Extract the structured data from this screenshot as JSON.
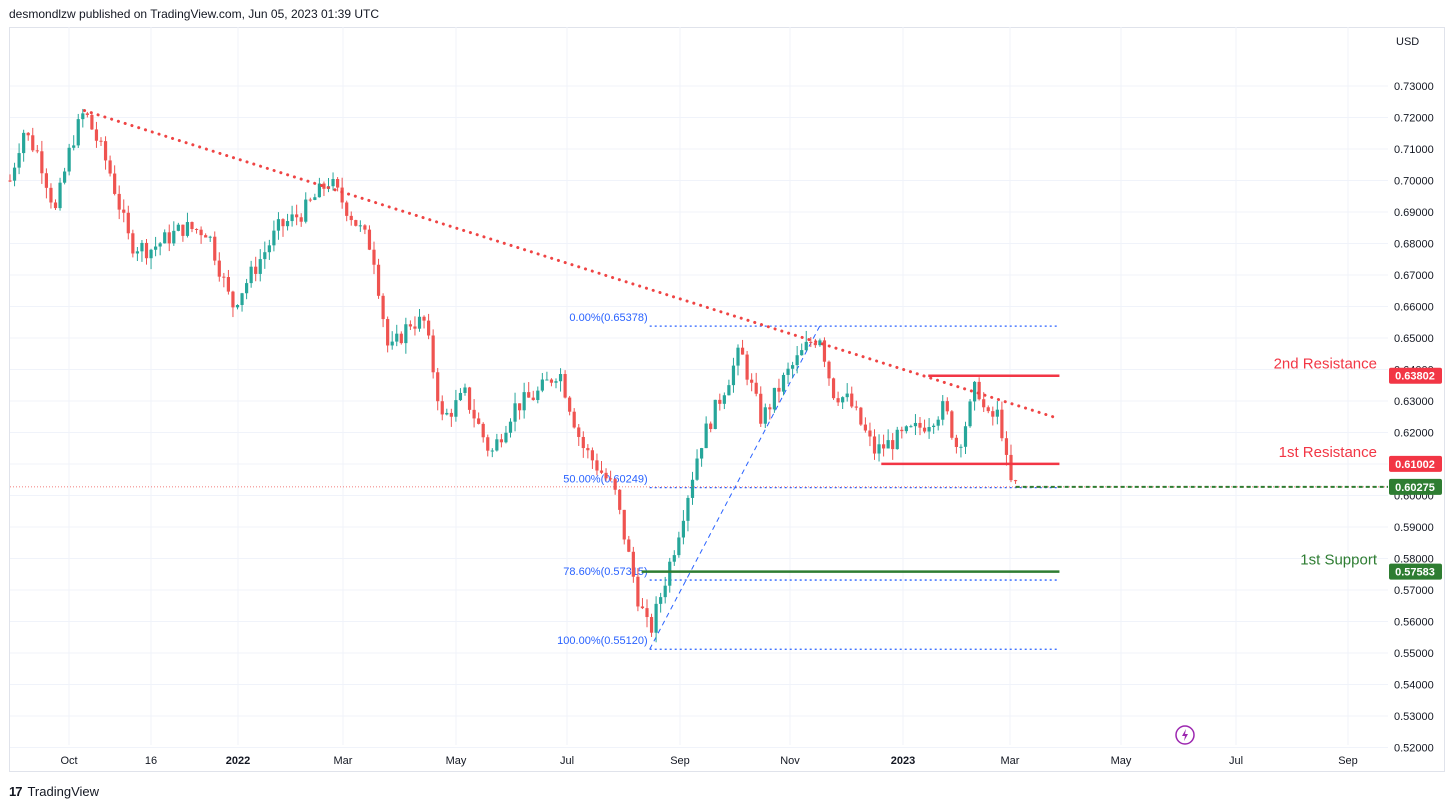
{
  "header": {
    "published": "desmondlzw published on TradingView.com, Jun 05, 2023 01:39 UTC"
  },
  "footer": {
    "brand": "TradingView",
    "logo_glyph": "17"
  },
  "colors": {
    "up": "#26a69a",
    "down": "#ef5350",
    "trend": "#ef4444",
    "fib": "#2962ff",
    "resistance": "#f23645",
    "support": "#2e7d32",
    "grid": "#f0f3fa"
  },
  "chart_data": {
    "type": "candlestick",
    "currency": "USD",
    "ylim": [
      0.515,
      0.737
    ],
    "y_ticks": [
      "0.73000",
      "0.72000",
      "0.71000",
      "0.70000",
      "0.69000",
      "0.68000",
      "0.67000",
      "0.66000",
      "0.65000",
      "0.64000",
      "0.63000",
      "0.62000",
      "0.61000",
      "0.60000",
      "0.59000",
      "0.58000",
      "0.57000",
      "0.56000",
      "0.55000",
      "0.54000",
      "0.53000",
      "0.52000"
    ],
    "x_ticks": [
      {
        "label": "Oct",
        "bold": false
      },
      {
        "label": "16",
        "bold": false
      },
      {
        "label": "2022",
        "bold": true
      },
      {
        "label": "Mar",
        "bold": false
      },
      {
        "label": "May",
        "bold": false
      },
      {
        "label": "Jul",
        "bold": false
      },
      {
        "label": "Sep",
        "bold": false
      },
      {
        "label": "Nov",
        "bold": false
      },
      {
        "label": "2023",
        "bold": true
      },
      {
        "label": "Mar",
        "bold": false
      },
      {
        "label": "May",
        "bold": false
      },
      {
        "label": "Jul",
        "bold": false
      },
      {
        "label": "Sep",
        "bold": false
      }
    ],
    "price_path": [
      [
        "2021-09-20",
        0.7
      ],
      [
        "2021-09-28",
        0.716
      ],
      [
        "2021-10-08",
        0.708
      ],
      [
        "2021-10-18",
        0.69
      ],
      [
        "2021-10-28",
        0.712
      ],
      [
        "2021-11-05",
        0.722
      ],
      [
        "2021-11-20",
        0.704
      ],
      [
        "2021-12-03",
        0.68
      ],
      [
        "2021-12-15",
        0.678
      ],
      [
        "2022-01-05",
        0.685
      ],
      [
        "2022-01-20",
        0.684
      ],
      [
        "2022-02-04",
        0.66
      ],
      [
        "2022-02-18",
        0.672
      ],
      [
        "2022-03-05",
        0.685
      ],
      [
        "2022-03-20",
        0.69
      ],
      [
        "2022-04-05",
        0.7
      ],
      [
        "2022-04-15",
        0.692
      ],
      [
        "2022-05-02",
        0.678
      ],
      [
        "2022-05-12",
        0.645
      ],
      [
        "2022-05-25",
        0.655
      ],
      [
        "2022-06-03",
        0.655
      ],
      [
        "2022-06-14",
        0.624
      ],
      [
        "2022-06-28",
        0.632
      ],
      [
        "2022-07-14",
        0.613
      ],
      [
        "2022-07-28",
        0.628
      ],
      [
        "2022-08-11",
        0.632
      ],
      [
        "2022-08-25",
        0.64
      ],
      [
        "2022-09-08",
        0.616
      ],
      [
        "2022-09-28",
        0.602
      ],
      [
        "2022-10-13",
        0.567
      ],
      [
        "2022-10-20",
        0.556
      ],
      [
        "2022-11-05",
        0.585
      ],
      [
        "2022-11-20",
        0.616
      ],
      [
        "2022-12-05",
        0.634
      ],
      [
        "2022-12-15",
        0.646
      ],
      [
        "2022-12-28",
        0.624
      ],
      [
        "2023-01-12",
        0.638
      ],
      [
        "2023-01-26",
        0.648
      ],
      [
        "2023-02-02",
        0.651
      ],
      [
        "2023-02-10",
        0.633
      ],
      [
        "2023-02-20",
        0.63
      ],
      [
        "2023-03-08",
        0.614
      ],
      [
        "2023-03-22",
        0.618
      ],
      [
        "2023-04-06",
        0.622
      ],
      [
        "2023-04-20",
        0.628
      ],
      [
        "2023-04-28",
        0.615
      ],
      [
        "2023-05-05",
        0.626
      ],
      [
        "2023-05-10",
        0.636
      ],
      [
        "2023-05-16",
        0.624
      ],
      [
        "2023-05-24",
        0.626
      ],
      [
        "2023-05-30",
        0.604
      ],
      [
        "2023-06-05",
        0.603
      ]
    ],
    "price_scale_tags": [
      {
        "value": 0.63802,
        "label": "0.63802",
        "kind": "resistance"
      },
      {
        "value": 0.61002,
        "label": "0.61002",
        "kind": "resistance"
      },
      {
        "value": 0.60275,
        "label": "0.60275",
        "kind": "support"
      },
      {
        "value": 0.57583,
        "label": "0.57583",
        "kind": "support"
      }
    ],
    "levels": [
      {
        "name": "2nd Resistance",
        "value": 0.63802,
        "from": "2023-04-10",
        "to": "2023-06-30",
        "kind": "resistance"
      },
      {
        "name": "1st Resistance",
        "value": 0.61002,
        "from": "2023-03-12",
        "to": "2023-06-30",
        "kind": "resistance"
      },
      {
        "name": "1st Support",
        "value": 0.57583,
        "from": "2022-10-15",
        "to": "2023-06-30",
        "kind": "support"
      }
    ],
    "fib_levels": [
      {
        "label": "0.00%(0.65378)",
        "value": 0.65378
      },
      {
        "label": "50.00%(0.60249)",
        "value": 0.60249
      },
      {
        "label": "78.60%(0.57315)",
        "value": 0.57315
      },
      {
        "label": "100.00%(0.55120)",
        "value": 0.5512
      }
    ],
    "fib_range": {
      "from": "2022-10-20",
      "to": "2023-06-30"
    },
    "fib_anchor": [
      [
        "2022-10-20",
        0.5512
      ],
      [
        "2023-02-02",
        0.65378
      ]
    ],
    "trendline": [
      [
        "2021-11-05",
        0.7222
      ],
      [
        "2023-06-26",
        0.625
      ]
    ],
    "last_price": 0.60275,
    "last_price_line_from": "2023-06-03"
  }
}
